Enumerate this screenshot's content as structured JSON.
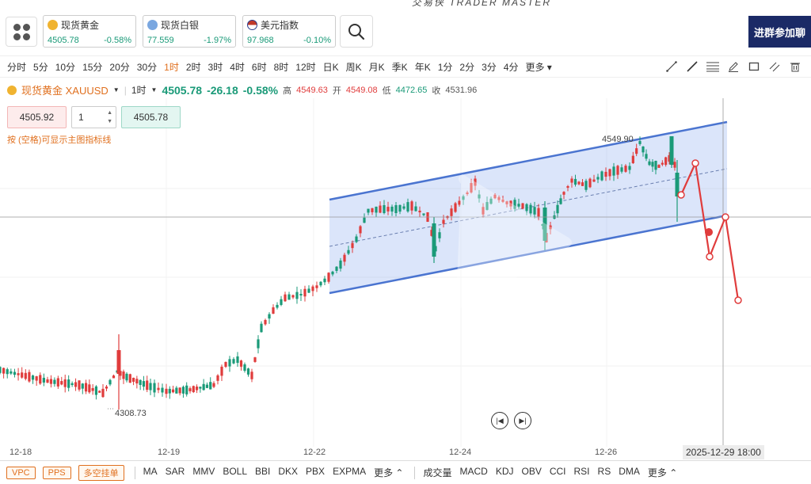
{
  "brand": "交易侠  TRADER MASTER",
  "tickers": [
    {
      "name": "现货黄金",
      "price": "4505.78",
      "change": "-0.58%",
      "icon": "gold-coin-icon",
      "color": "#f0b330"
    },
    {
      "name": "现货白银",
      "price": "77.559",
      "change": "-1.97%",
      "icon": "silver-coin-icon",
      "color": "#7aa7e0"
    },
    {
      "name": "美元指数",
      "price": "97.968",
      "change": "-0.10%",
      "icon": "us-flag-icon",
      "color": "#c0392b"
    }
  ],
  "banner": "进群参加聊",
  "periods": [
    "分时",
    "5分",
    "10分",
    "15分",
    "20分",
    "30分",
    "1时",
    "2时",
    "3时",
    "4时",
    "6时",
    "8时",
    "12时",
    "日K",
    "周K",
    "月K",
    "季K",
    "年K",
    "1分",
    "2分",
    "3分",
    "4分",
    "更多"
  ],
  "active_period": "1时",
  "info": {
    "symbol": "现货黄金 XAUUSD",
    "interval": "1时",
    "price": "4505.78",
    "change": "-26.18",
    "change_pct": "-0.58%",
    "high_label": "高",
    "high": "4549.63",
    "open_label": "开",
    "open": "4549.08",
    "low_label": "低",
    "low": "4472.65",
    "close_label": "收",
    "close": "4531.96"
  },
  "order": {
    "sell_price": "4505.92",
    "qty": "1",
    "buy_price": "4505.78"
  },
  "hint": "按 (空格)可显示主图指标线",
  "annotations": {
    "high_label": "4549.90",
    "low_label": "4308.73"
  },
  "x_labels": [
    "12-18",
    "12-19",
    "12-22",
    "12-24",
    "12-26"
  ],
  "cursor_time": "2025-12-29 18:00",
  "bottom": {
    "tags": [
      "VPC",
      "PPS",
      "多空挂单"
    ],
    "main_indicators": [
      "MA",
      "SAR",
      "MMV",
      "BOLL",
      "BBI",
      "DKX",
      "PBX",
      "EXPMA",
      "更多"
    ],
    "sub_indicators": [
      "成交量",
      "MACD",
      "KDJ",
      "OBV",
      "CCI",
      "RSI",
      "RS",
      "DMA",
      "更多"
    ]
  },
  "colors": {
    "up": "#e03c3c",
    "down": "#1a9a78",
    "channel": "#4a74d0",
    "accent": "#e0701f"
  }
}
